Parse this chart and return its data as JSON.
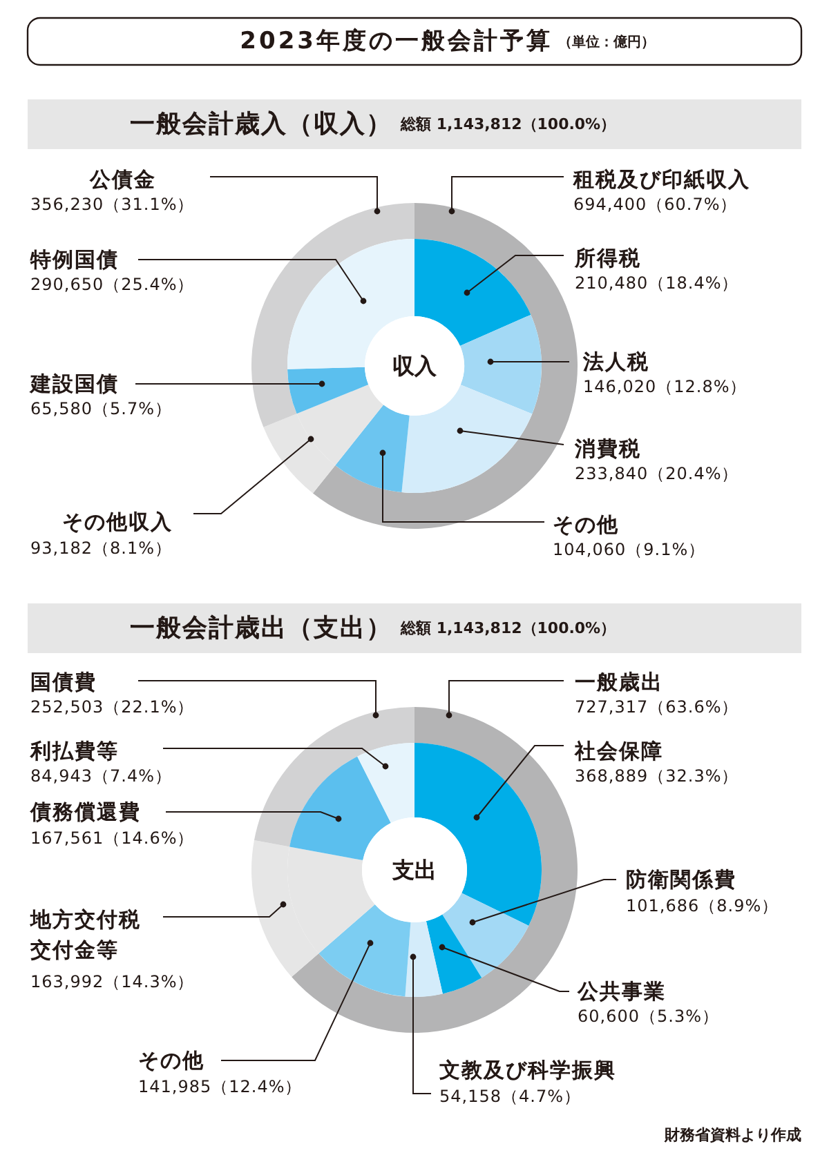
{
  "chart_data": [
    {
      "type": "donut",
      "title": "一般会計歳入（収入）",
      "subtitle": "総額 1,143,812（100.0%）",
      "annotations": [
        "2023年度の一般会計予算",
        "（単位：億円）"
      ],
      "categories": [
        "租税及び印紙収入",
        null,
        "公債金"
      ],
      "values": [
        694400,
        93182,
        356230
      ],
      "colors": [
        "#b4b4b5",
        "#e6e6e6",
        "#d2d2d3"
      ],
      "value_labels": [
        "694,400（60.7%）",
        null,
        "356,230（31.1%）"
      ]
    },
    {
      "type": "donut",
      "annotations": [
        "収入"
      ],
      "categories": [
        "所得税",
        "法人税",
        "消費税",
        "その他",
        "その他収入",
        "建設国債",
        "特例国債"
      ],
      "values": [
        210480,
        146020,
        233840,
        104060,
        93182,
        65580,
        290650
      ],
      "colors": [
        "#00aee8",
        "#a3d9f5",
        "#d4ecfa",
        "#6cc5f0",
        "#e6e6e6",
        "#5bbfee",
        "#e6f4fc"
      ],
      "value_labels": [
        "210,480（18.4%）",
        "146,020（12.8%）",
        "233,840（20.4%）",
        "104,060（9.1%）",
        "93,182（8.1%）",
        "65,580（5.7%）",
        "290,650（25.4%）"
      ]
    },
    {
      "type": "donut",
      "title": "一般会計歳出（支出）",
      "subtitle": "総額 1,143,812（100.0%）",
      "categories": [
        "一般歳出",
        null,
        "国債費"
      ],
      "values": [
        727317,
        163992,
        252503
      ],
      "colors": [
        "#b4b4b5",
        "#e6e6e6",
        "#d2d2d3"
      ],
      "value_labels": [
        "727,317（63.6%）",
        null,
        "252,503（22.1%）"
      ]
    },
    {
      "type": "donut",
      "annotations": [
        "支出",
        "財務省資料より作成"
      ],
      "categories": [
        "社会保障",
        "防衛関係費",
        "公共事業",
        "文教及び科学振興",
        "その他",
        "地方交付税交付金等",
        "債務償還費",
        "利払費等"
      ],
      "values": [
        368889,
        101686,
        60600,
        54158,
        141985,
        163992,
        167561,
        84943
      ],
      "colors": [
        "#00aee8",
        "#a3d9f5",
        "#00aee8",
        "#d4ecfa",
        "#7ccdf2",
        "#e6e6e6",
        "#5bbfee",
        "#e6f4fc"
      ],
      "value_labels": [
        "368,889（32.3%）",
        "101,686（8.9%）",
        "60,600（5.3%）",
        "54,158（4.7%）",
        "141,985（12.4%）",
        "163,992（14.3%）",
        "167,561（14.6%）",
        "84,943（7.4%）"
      ]
    }
  ]
}
